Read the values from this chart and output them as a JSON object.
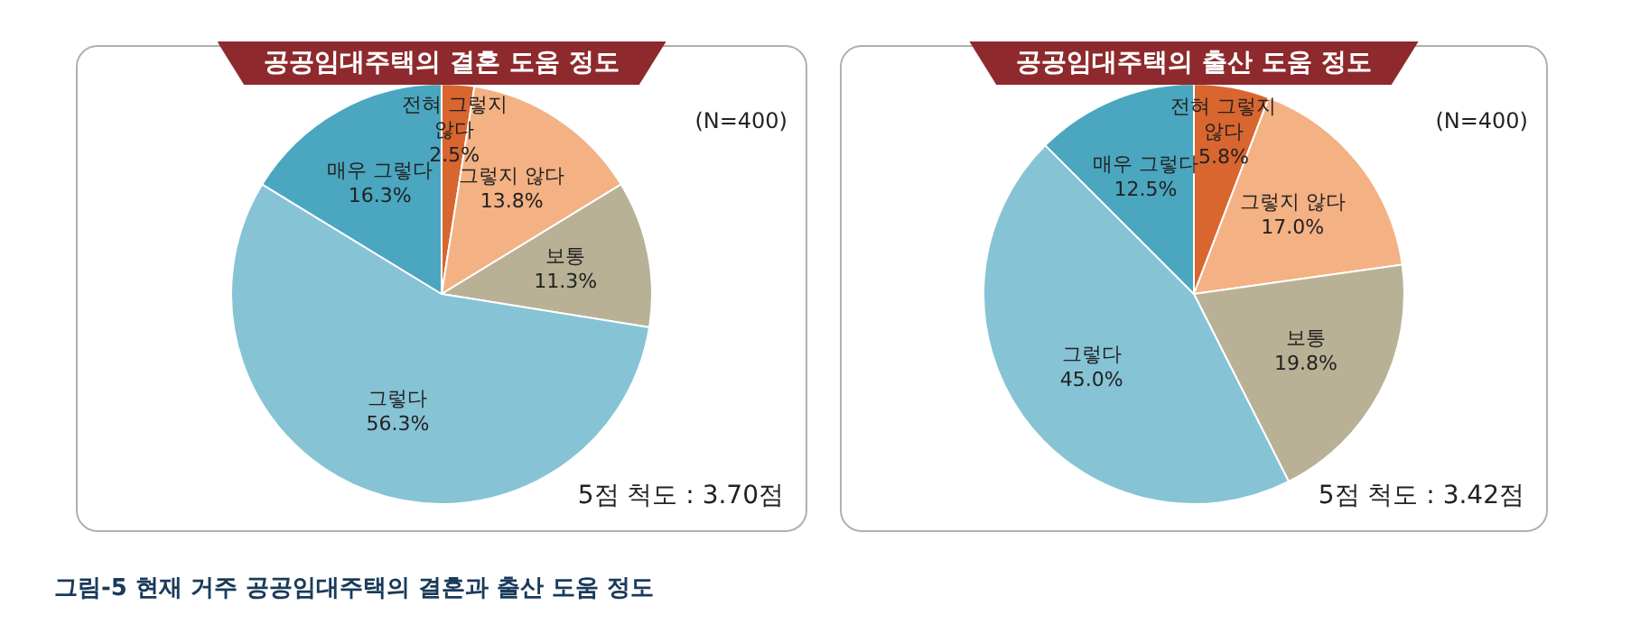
{
  "chart_data": [
    {
      "type": "pie",
      "title": "공공임대주택의 결혼 도움 정도",
      "categories": [
        "전혀 그렇지 않다",
        "그렇지 않다",
        "보통",
        "그렇다",
        "매우 그렇다"
      ],
      "values": [
        2.5,
        13.8,
        11.3,
        56.3,
        16.3
      ],
      "value_labels": [
        "2.5%",
        "13.8%",
        "11.3%",
        "56.3%",
        "16.3%"
      ],
      "colors": [
        "#d9662f",
        "#f4b183",
        "#b8b195",
        "#86c3d5",
        "#4ba6bf"
      ],
      "annotations": [
        "(N=400)",
        "5점 척도 : 3.70점",
        "그림-5 현재 거주 공공임대주택의 결혼과 출산 도움 정도"
      ],
      "legend": false
    },
    {
      "type": "pie",
      "title": "공공임대주택의 출산 도움 정도",
      "categories": [
        "전혀 그렇지 않다",
        "그렇지 않다",
        "보통",
        "그렇다",
        "매우 그렇다"
      ],
      "values": [
        5.8,
        17.0,
        19.8,
        45.0,
        12.5
      ],
      "value_labels": [
        "5.8%",
        "17.0%",
        "19.8%",
        "45.0%",
        "12.5%"
      ],
      "colors": [
        "#d9662f",
        "#f4b183",
        "#b8b195",
        "#86c3d5",
        "#4ba6bf"
      ],
      "annotations": [
        "(N=400)",
        "5점 척도 : 3.42점"
      ],
      "legend": false
    }
  ]
}
